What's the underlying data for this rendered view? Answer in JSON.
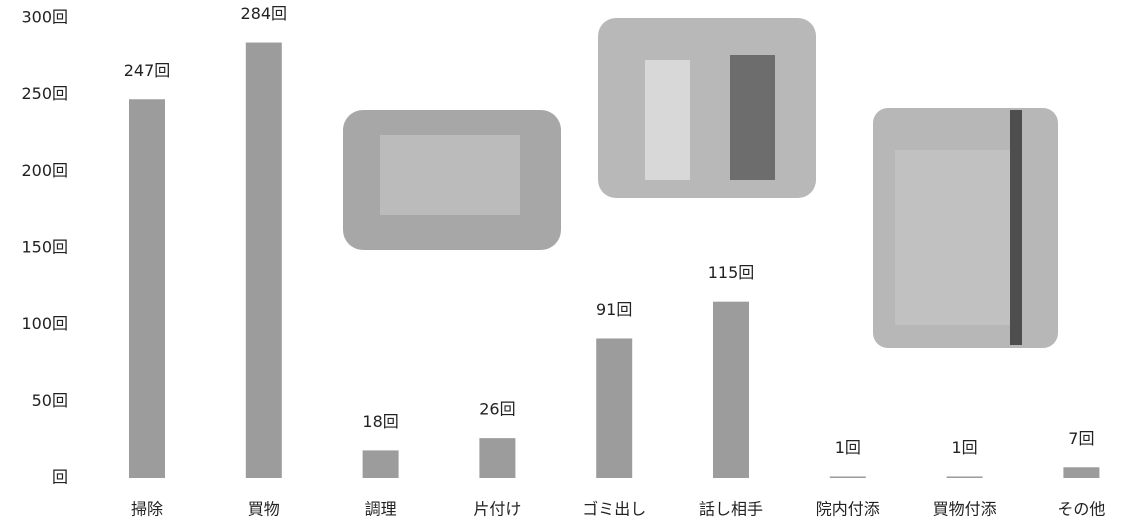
{
  "chart_data": {
    "type": "bar",
    "categories": [
      "掃除",
      "買物",
      "調理",
      "片付け",
      "ゴミ出し",
      "話し相手",
      "院内付添",
      "買物付添",
      "その他"
    ],
    "values": [
      247,
      284,
      18,
      26,
      91,
      115,
      1,
      1,
      7
    ],
    "value_labels": [
      "247回",
      "284回",
      "18回",
      "26回",
      "91回",
      "115回",
      "1回",
      "1回",
      "7回"
    ],
    "color": "#9c9c9c",
    "ylim": [
      0,
      300
    ],
    "yticks": [
      {
        "value": 0,
        "label": "回"
      },
      {
        "value": 50,
        "label": "50回"
      },
      {
        "value": 100,
        "label": "100回"
      },
      {
        "value": 150,
        "label": "150回"
      },
      {
        "value": 200,
        "label": "200回"
      },
      {
        "value": 250,
        "label": "250回"
      },
      {
        "value": 300,
        "label": "300回"
      }
    ]
  }
}
